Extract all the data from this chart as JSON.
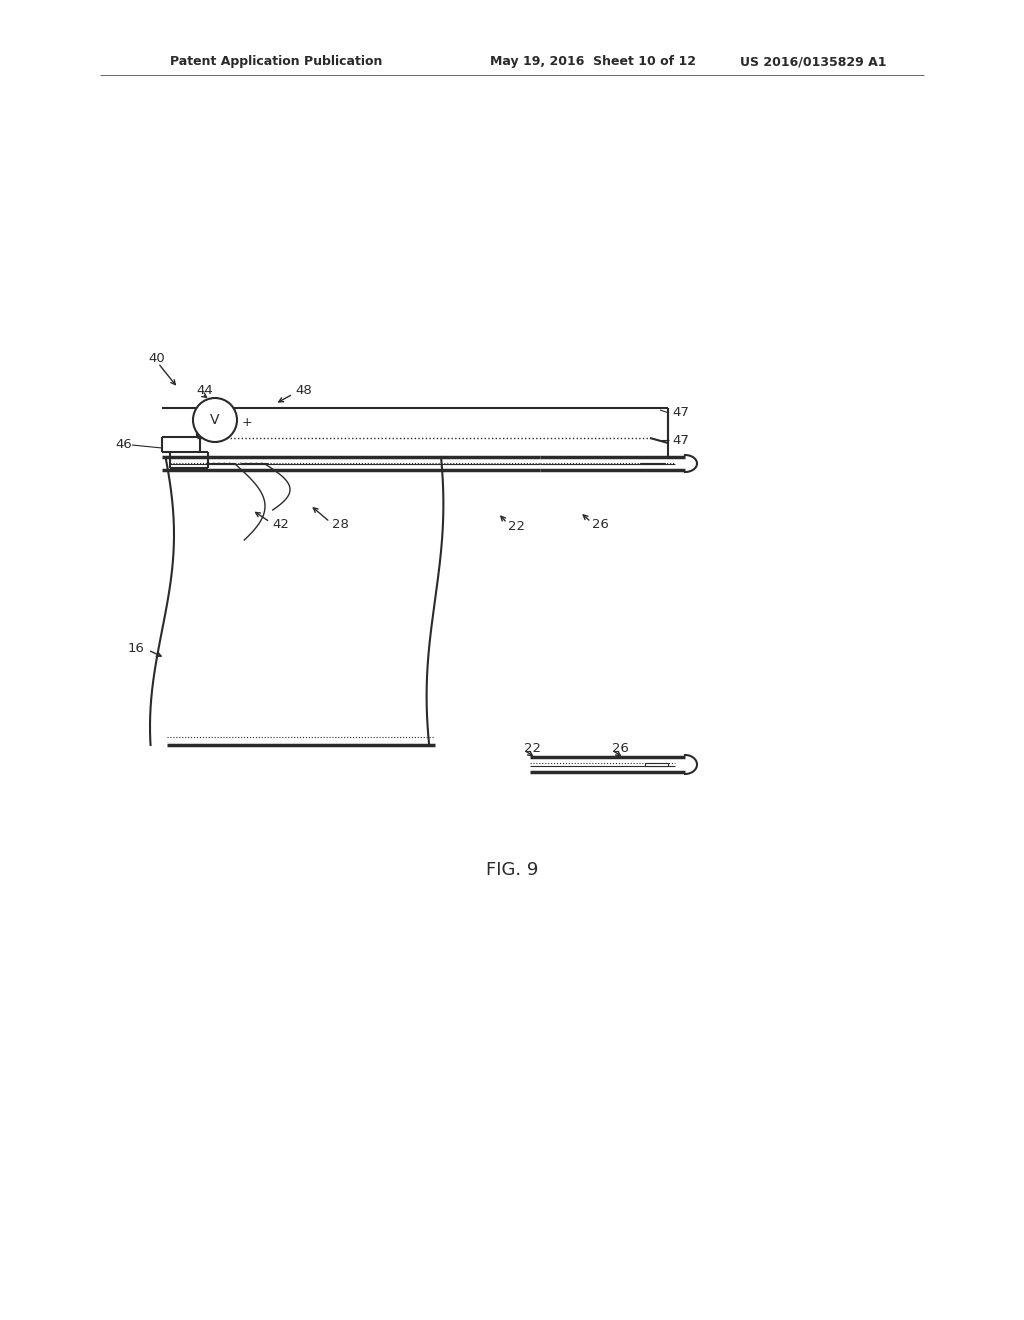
{
  "bg_color": "#ffffff",
  "line_color": "#2a2a2a",
  "title_line1": "Patent Application Publication",
  "title_line2": "May 19, 2016  Sheet 10 of 12",
  "title_line3": "US 2016/0135829 A1",
  "fig_label": "FIG. 9"
}
